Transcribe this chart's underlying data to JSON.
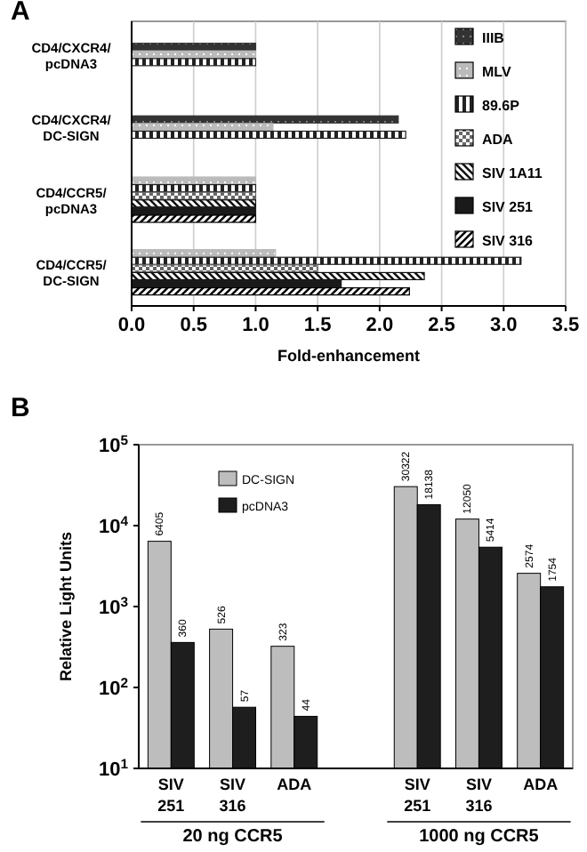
{
  "chart_data": [
    {
      "type": "bar",
      "title": "A",
      "orientation": "horizontal",
      "xlabel": "Fold-enhancement",
      "categories": [
        "CD4/CXCR4/pcDNA3",
        "CD4/CXCR4/DC-SIGN",
        "CD4/CCR5/pcDNA3",
        "CD4/CCR5/DC-SIGN"
      ],
      "series": [
        {
          "name": "IIIB",
          "color": "#333333",
          "values": [
            1.0,
            2.15,
            null,
            null
          ]
        },
        {
          "name": "MLV",
          "color": "#bbbbbb",
          "values": [
            1.0,
            1.14,
            1.0,
            1.16
          ]
        },
        {
          "name": "89.6P",
          "color": "#222222",
          "values": [
            1.0,
            2.21,
            1.0,
            3.14
          ]
        },
        {
          "name": "ADA",
          "color": "#666666",
          "values": [
            null,
            null,
            1.0,
            1.5
          ]
        },
        {
          "name": "SIV 1A11",
          "color": "#111111",
          "values": [
            null,
            null,
            1.0,
            2.36
          ]
        },
        {
          "name": "SIV 251",
          "color": "#1a1a1a",
          "values": [
            null,
            null,
            1.0,
            1.69
          ]
        },
        {
          "name": "SIV 316",
          "color": "#000000",
          "values": [
            null,
            null,
            1.0,
            2.24
          ]
        }
      ],
      "xlim": [
        0,
        3.5
      ],
      "xticks": [
        {
          "value": 0,
          "label": "0.0"
        },
        {
          "value": 0.5,
          "label": "0.5"
        },
        {
          "value": 1,
          "label": "1.0"
        },
        {
          "value": 1.5,
          "label": "1.5"
        },
        {
          "value": 2,
          "label": "2.0"
        },
        {
          "value": 2.5,
          "label": "2.5"
        },
        {
          "value": 3,
          "label": "3.0"
        },
        {
          "value": 3.5,
          "label": "3.5"
        }
      ],
      "grid": "x",
      "legend": "top right"
    },
    {
      "type": "bar",
      "title": "B",
      "ylabel": "Relative Light Units",
      "log": true,
      "categories": [
        "SIV 251",
        "SIV 316",
        "ADA",
        null,
        "SIV 251",
        "SIV 316",
        "ADA"
      ],
      "series": [
        {
          "name": "DC-SIGN",
          "color": "#bdbdbd",
          "values": [
            6405,
            526,
            323,
            null,
            30322,
            12050,
            2574
          ]
        },
        {
          "name": "pcDNA3",
          "color": "#1e1e1e",
          "values": [
            360,
            57,
            44,
            null,
            18138,
            5414,
            1754
          ]
        }
      ],
      "ylim": [
        10,
        100000
      ],
      "yticks": [
        {
          "value": 10,
          "label": "10$^{1}$"
        },
        {
          "value": 100,
          "label": "10$^{2}$"
        },
        {
          "value": 1000,
          "label": "10$^{3}$"
        },
        {
          "value": 10000,
          "label": "10$^{4}$"
        },
        {
          "value": 100000,
          "label": "10$^{5}$"
        }
      ],
      "data_labels": true,
      "legend": "top",
      "annotations": [
        "20 ng CCR5",
        "1000 ng CCR5"
      ]
    }
  ]
}
